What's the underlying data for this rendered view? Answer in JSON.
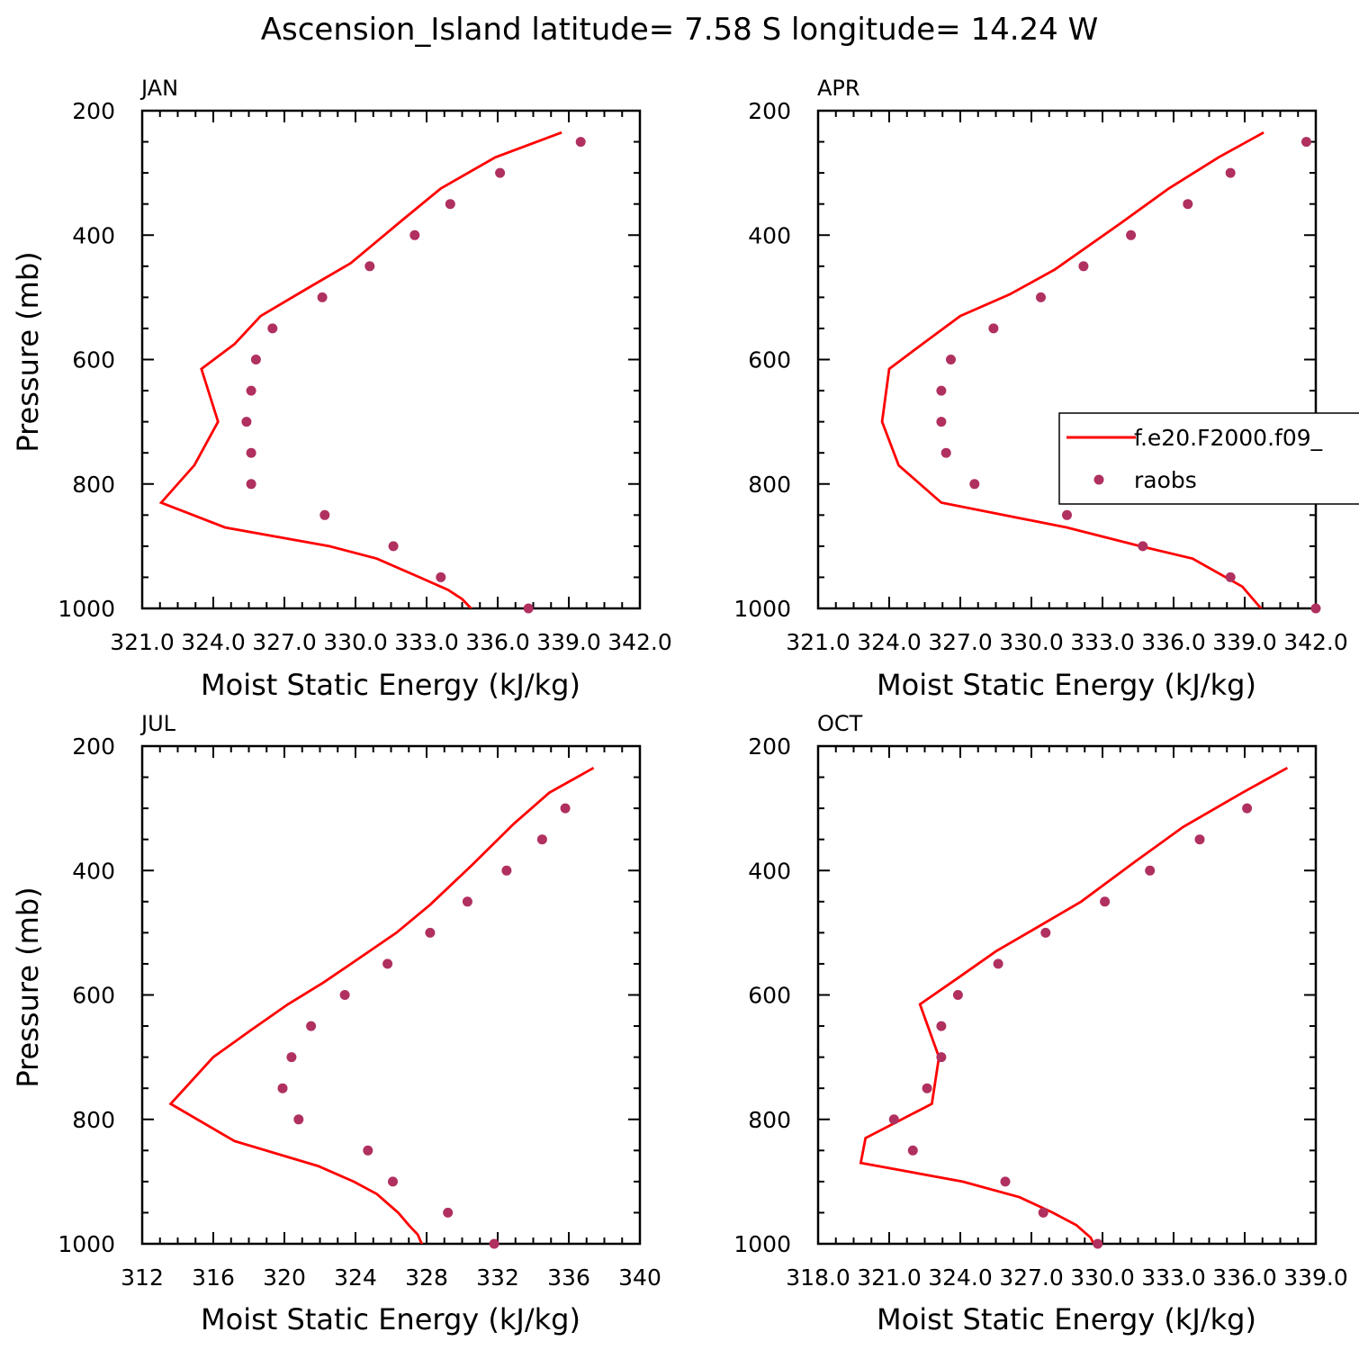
{
  "figure": {
    "title": "Ascension_Island  latitude= 7.58 S longitude= 14.24 W",
    "colors": {
      "model_line": "#ff0000",
      "obs_marker": "#b03060",
      "axes": "#000000"
    }
  },
  "legend": {
    "items": [
      {
        "label": "f.e20.F2000.f09_",
        "kind": "line"
      },
      {
        "label": "raobs",
        "kind": "marker"
      }
    ]
  },
  "chart_data": [
    {
      "type": "line",
      "panel": "JAN",
      "xlabel": "Moist Static Energy (kJ/kg)",
      "ylabel": "Pressure (mb)",
      "xlim": [
        321.0,
        342.0
      ],
      "ylim": [
        1000,
        200
      ],
      "xticks": [
        321.0,
        324.0,
        327.0,
        330.0,
        333.0,
        336.0,
        339.0,
        342.0
      ],
      "xtick_labels": [
        "321.0",
        "324.0",
        "327.0",
        "330.0",
        "333.0",
        "336.0",
        "339.0",
        "342.0"
      ],
      "yticks": [
        200,
        400,
        600,
        800,
        1000
      ],
      "ytick_labels": [
        "200",
        "400",
        "600",
        "800",
        "1000"
      ],
      "series": [
        {
          "name": "f.e20.F2000.f09_",
          "kind": "line",
          "points": [
            [
              338.7,
              235
            ],
            [
              335.9,
              275
            ],
            [
              333.6,
              325
            ],
            [
              332.0,
              375
            ],
            [
              329.8,
              445
            ],
            [
              328.0,
              485
            ],
            [
              326.0,
              530
            ],
            [
              324.9,
              575
            ],
            [
              323.5,
              615
            ],
            [
              324.2,
              700
            ],
            [
              323.2,
              770
            ],
            [
              321.8,
              830
            ],
            [
              324.5,
              870
            ],
            [
              328.9,
              900
            ],
            [
              330.9,
              920
            ],
            [
              332.7,
              950
            ],
            [
              333.9,
              970
            ],
            [
              334.5,
              985
            ],
            [
              335.0,
              1005
            ]
          ]
        },
        {
          "name": "raobs",
          "kind": "scatter",
          "points": [
            [
              339.5,
              250
            ],
            [
              336.1,
              300
            ],
            [
              334.0,
              350
            ],
            [
              332.5,
              400
            ],
            [
              330.6,
              450
            ],
            [
              328.6,
              500
            ],
            [
              326.5,
              550
            ],
            [
              325.8,
              600
            ],
            [
              325.6,
              650
            ],
            [
              325.4,
              700
            ],
            [
              325.6,
              750
            ],
            [
              325.6,
              800
            ],
            [
              328.7,
              850
            ],
            [
              331.6,
              900
            ],
            [
              333.6,
              950
            ],
            [
              337.3,
              1000
            ]
          ]
        }
      ]
    },
    {
      "type": "line",
      "panel": "APR",
      "xlabel": "Moist Static Energy (kJ/kg)",
      "ylabel": "",
      "xlim": [
        321.0,
        342.0
      ],
      "ylim": [
        1000,
        200
      ],
      "xticks": [
        321.0,
        324.0,
        327.0,
        330.0,
        333.0,
        336.0,
        339.0,
        342.0
      ],
      "xtick_labels": [
        "321.0",
        "324.0",
        "327.0",
        "330.0",
        "333.0",
        "336.0",
        "339.0",
        "342.0"
      ],
      "yticks": [
        200,
        400,
        600,
        800,
        1000
      ],
      "ytick_labels": [
        "200",
        "400",
        "600",
        "800",
        "1000"
      ],
      "series": [
        {
          "name": "f.e20.F2000.f09_",
          "kind": "line",
          "points": [
            [
              339.8,
              235
            ],
            [
              337.9,
              275
            ],
            [
              335.8,
              325
            ],
            [
              333.8,
              380
            ],
            [
              331.0,
              455
            ],
            [
              329.1,
              495
            ],
            [
              327.0,
              530
            ],
            [
              325.4,
              575
            ],
            [
              324.0,
              615
            ],
            [
              323.7,
              700
            ],
            [
              324.4,
              770
            ],
            [
              326.2,
              830
            ],
            [
              331.5,
              870
            ],
            [
              334.6,
              900
            ],
            [
              336.8,
              920
            ],
            [
              338.9,
              965
            ],
            [
              339.8,
              1005
            ]
          ]
        },
        {
          "name": "raobs",
          "kind": "scatter",
          "points": [
            [
              341.6,
              250
            ],
            [
              338.4,
              300
            ],
            [
              336.6,
              350
            ],
            [
              334.2,
              400
            ],
            [
              332.2,
              450
            ],
            [
              330.4,
              500
            ],
            [
              328.4,
              550
            ],
            [
              326.6,
              600
            ],
            [
              326.2,
              650
            ],
            [
              326.2,
              700
            ],
            [
              326.4,
              750
            ],
            [
              327.6,
              800
            ],
            [
              331.5,
              850
            ],
            [
              334.7,
              900
            ],
            [
              338.4,
              950
            ],
            [
              342.0,
              1000
            ]
          ]
        }
      ]
    },
    {
      "type": "line",
      "panel": "JUL",
      "xlabel": "Moist Static Energy (kJ/kg)",
      "ylabel": "Pressure (mb)",
      "xlim": [
        312,
        340
      ],
      "ylim": [
        1000,
        200
      ],
      "xticks": [
        312,
        316,
        320,
        324,
        328,
        332,
        336,
        340
      ],
      "xtick_labels": [
        "312",
        "316",
        "320",
        "324",
        "328",
        "332",
        "336",
        "340"
      ],
      "yticks": [
        200,
        400,
        600,
        800,
        1000
      ],
      "ytick_labels": [
        "200",
        "400",
        "600",
        "800",
        "1000"
      ],
      "series": [
        {
          "name": "f.e20.F2000.f09_",
          "kind": "line",
          "points": [
            [
              337.4,
              235
            ],
            [
              334.9,
              275
            ],
            [
              332.9,
              325
            ],
            [
              330.6,
              390
            ],
            [
              328.2,
              455
            ],
            [
              326.3,
              500
            ],
            [
              324.0,
              545
            ],
            [
              322.2,
              580
            ],
            [
              320.2,
              615
            ],
            [
              318.2,
              655
            ],
            [
              316.0,
              700
            ],
            [
              313.6,
              775
            ],
            [
              317.2,
              835
            ],
            [
              321.9,
              875
            ],
            [
              323.9,
              900
            ],
            [
              325.2,
              920
            ],
            [
              326.4,
              950
            ],
            [
              327.0,
              970
            ],
            [
              327.5,
              985
            ],
            [
              327.8,
              1005
            ]
          ]
        },
        {
          "name": "raobs",
          "kind": "scatter",
          "points": [
            [
              335.8,
              300
            ],
            [
              334.5,
              350
            ],
            [
              332.5,
              400
            ],
            [
              330.3,
              450
            ],
            [
              328.2,
              500
            ],
            [
              325.8,
              550
            ],
            [
              323.4,
              600
            ],
            [
              321.5,
              650
            ],
            [
              320.4,
              700
            ],
            [
              319.9,
              750
            ],
            [
              320.8,
              800
            ],
            [
              324.7,
              850
            ],
            [
              326.1,
              900
            ],
            [
              329.2,
              950
            ],
            [
              331.8,
              1000
            ]
          ]
        }
      ]
    },
    {
      "type": "line",
      "panel": "OCT",
      "xlabel": "Moist Static Energy (kJ/kg)",
      "ylabel": "",
      "xlim": [
        318.0,
        339.0
      ],
      "ylim": [
        1000,
        200
      ],
      "xticks": [
        318.0,
        321.0,
        324.0,
        327.0,
        330.0,
        333.0,
        336.0,
        339.0
      ],
      "xtick_labels": [
        "318.0",
        "321.0",
        "324.0",
        "327.0",
        "330.0",
        "333.0",
        "336.0",
        "339.0"
      ],
      "yticks": [
        200,
        400,
        600,
        800,
        1000
      ],
      "ytick_labels": [
        "200",
        "400",
        "600",
        "800",
        "1000"
      ],
      "series": [
        {
          "name": "f.e20.F2000.f09_",
          "kind": "line",
          "points": [
            [
              337.8,
              235
            ],
            [
              335.9,
              275
            ],
            [
              333.4,
              330
            ],
            [
              331.4,
              385
            ],
            [
              329.1,
              450
            ],
            [
              327.3,
              490
            ],
            [
              325.5,
              530
            ],
            [
              324.0,
              570
            ],
            [
              322.3,
              615
            ],
            [
              323.1,
              700
            ],
            [
              322.8,
              775
            ],
            [
              320.0,
              830
            ],
            [
              319.8,
              870
            ],
            [
              324.1,
              900
            ],
            [
              326.5,
              925
            ],
            [
              327.9,
              950
            ],
            [
              328.9,
              970
            ],
            [
              329.5,
              990
            ],
            [
              329.7,
              1005
            ]
          ]
        },
        {
          "name": "raobs",
          "kind": "scatter",
          "points": [
            [
              336.1,
              300
            ],
            [
              334.1,
              350
            ],
            [
              332.0,
              400
            ],
            [
              330.1,
              450
            ],
            [
              327.6,
              500
            ],
            [
              325.6,
              550
            ],
            [
              323.9,
              600
            ],
            [
              323.2,
              650
            ],
            [
              323.2,
              700
            ],
            [
              322.6,
              750
            ],
            [
              321.2,
              800
            ],
            [
              322.0,
              850
            ],
            [
              325.9,
              900
            ],
            [
              327.5,
              950
            ],
            [
              329.8,
              1000
            ]
          ]
        }
      ]
    }
  ]
}
